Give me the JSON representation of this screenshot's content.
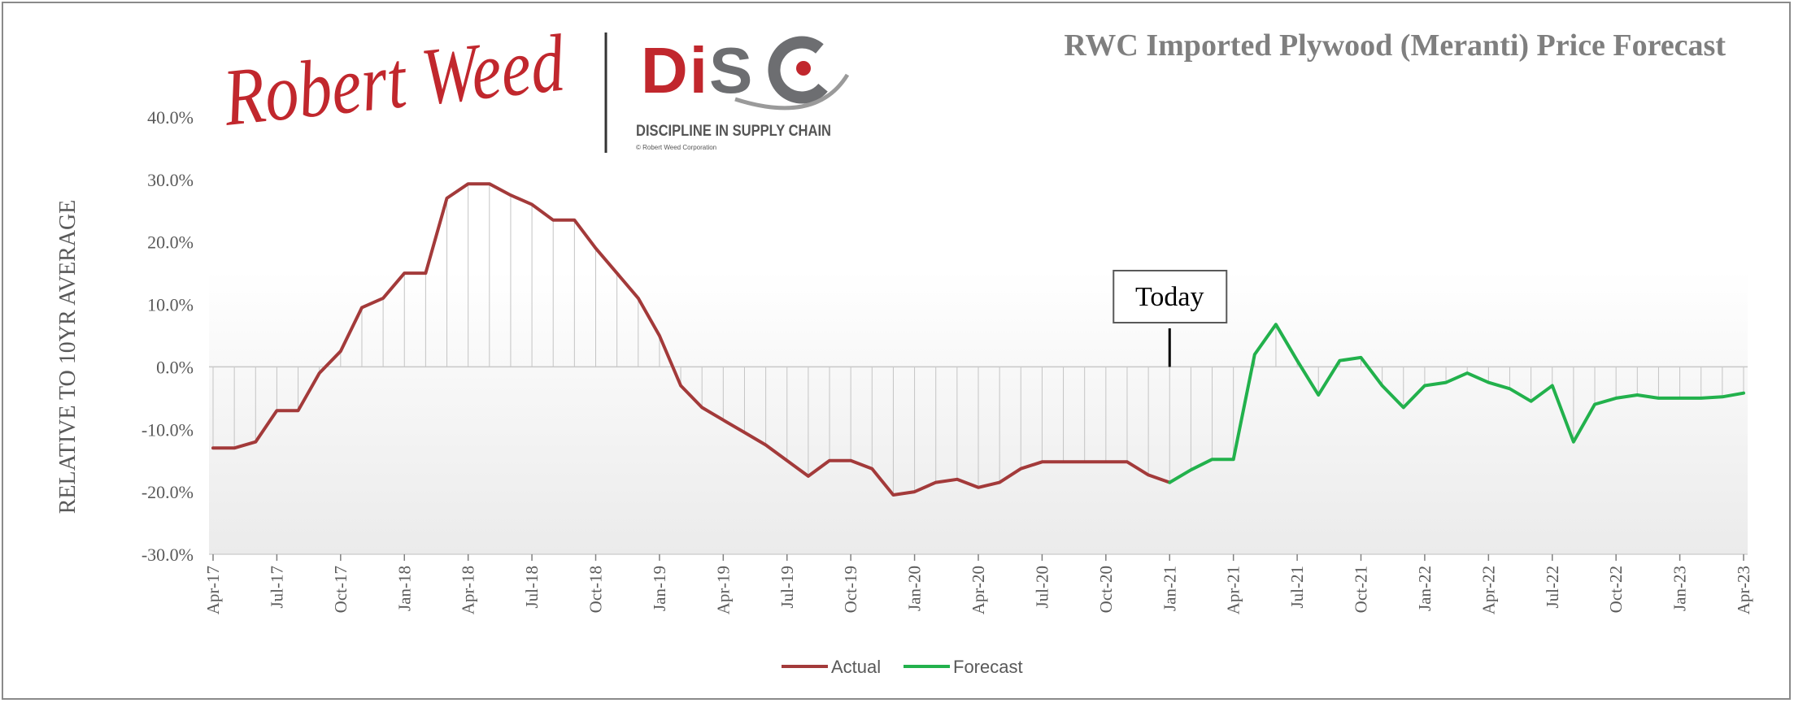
{
  "chart_data": {
    "type": "line",
    "title": "RWC Imported Plywood (Meranti) Price Forecast",
    "ylabel": "RELATIVE TO 10YR AVERAGE",
    "xlabel": "",
    "ylim": [
      -30,
      40
    ],
    "y_ticks": [
      "40.0%",
      "30.0%",
      "20.0%",
      "10.0%",
      "0.0%",
      "-10.0%",
      "-20.0%",
      "-30.0%"
    ],
    "y_tick_values": [
      40,
      30,
      20,
      10,
      0,
      -10,
      -20,
      -30
    ],
    "x_ticks": [
      "Apr-17",
      "Jul-17",
      "Oct-17",
      "Jan-18",
      "Apr-18",
      "Jul-18",
      "Oct-18",
      "Jan-19",
      "Apr-19",
      "Jul-19",
      "Oct-19",
      "Jan-20",
      "Apr-20",
      "Jul-20",
      "Oct-20",
      "Jan-21",
      "Apr-21",
      "Jul-21",
      "Oct-21",
      "Jan-22",
      "Apr-22",
      "Jul-22",
      "Oct-22",
      "Jan-23",
      "Apr-23"
    ],
    "x_tick_months": [
      0,
      3,
      6,
      9,
      12,
      15,
      18,
      21,
      24,
      27,
      30,
      33,
      36,
      39,
      42,
      45,
      48,
      51,
      54,
      57,
      60,
      63,
      66,
      69,
      72
    ],
    "series": [
      {
        "name": "Actual",
        "color": "#a33a3a",
        "values": [
          -13,
          -13,
          -12,
          -7,
          -7,
          -1,
          2.5,
          9.5,
          11,
          15,
          15,
          27,
          29.3,
          29.3,
          27.5,
          26,
          23.5,
          23.5,
          19,
          15,
          11,
          5,
          -3,
          -6.5,
          -8.5,
          -10.5,
          -12.5,
          -15,
          -17.5,
          -15,
          -15,
          -16.3,
          -20.5,
          -20,
          -18.5,
          -18,
          -19.3,
          -18.5,
          -16.3,
          -15.2,
          -15.2,
          -15.2,
          -15.2,
          -15.2,
          -17.3,
          -18.5
        ]
      },
      {
        "name": "Forecast",
        "color": "#22b14c",
        "start_month": 45,
        "values": [
          -18.5,
          -16.5,
          -14.8,
          -14.8,
          2,
          6.8,
          1,
          -4.5,
          1,
          1.5,
          -3,
          -6.5,
          -3,
          -2.5,
          -1,
          -2.5,
          -3.5,
          -5.5,
          -3,
          -12,
          -6,
          -5,
          -4.5,
          -5,
          -5,
          -5,
          -4.8,
          -4.2
        ]
      }
    ],
    "annotations": [
      {
        "text": "Today",
        "at_month": 45
      }
    ],
    "legend": {
      "position": "bottom-center",
      "entries": [
        "Actual",
        "Forecast"
      ]
    },
    "grid": false
  },
  "logo": {
    "signature_text": "Robert Weed",
    "disc_text": "DiSC",
    "tagline": "DISCIPLINE IN SUPPLY CHAIN",
    "copyright": "© Robert Weed Corporation",
    "signature_color": "#c1272d",
    "disc_gray": "#6d6e71",
    "disc_red": "#c1272d"
  }
}
